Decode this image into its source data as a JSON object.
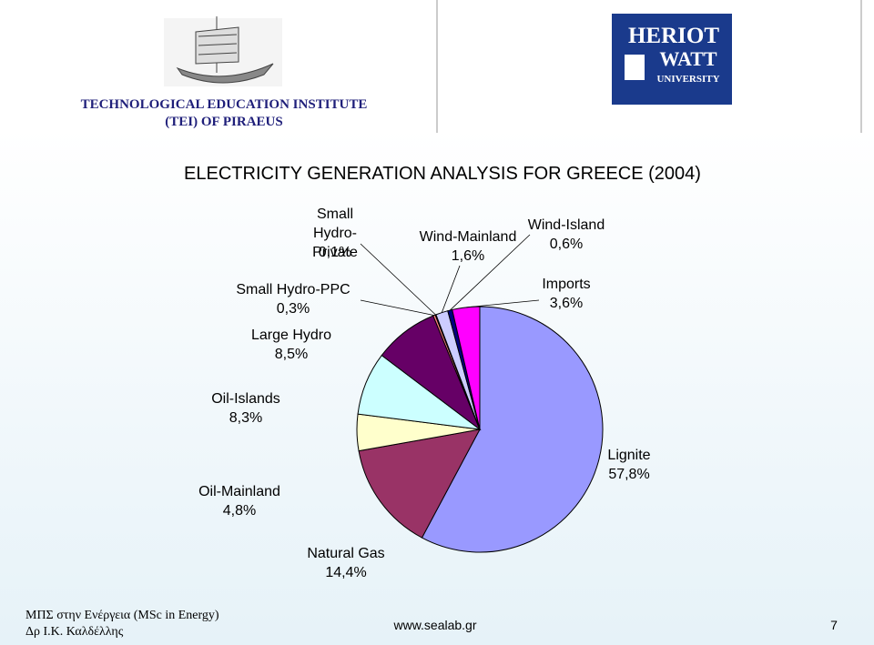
{
  "header": {
    "institute_line1": "TECHNOLOGICAL EDUCATION INSTITUTE",
    "institute_line2": "(TEI) OF PIRAEUS",
    "logo_line1": "HERIOT",
    "logo_line2": "WATT",
    "logo_line3": "UNIVERSITY"
  },
  "chart_data": {
    "type": "pie",
    "title": "ELECTRICITY GENERATION ANALYSIS FOR GREECE (2004)",
    "categories": [
      "Lignite",
      "Natural Gas",
      "Oil-Mainland",
      "Oil-Islands",
      "Large Hydro",
      "Small Hydro-PPC",
      "Small Hydro-Private",
      "Wind-Mainland",
      "Wind-Island",
      "Imports"
    ],
    "values": [
      57.8,
      14.4,
      4.8,
      8.3,
      8.5,
      0.3,
      0.1,
      1.6,
      0.6,
      3.6
    ],
    "value_labels": [
      "57,8%",
      "14,4%",
      "4,8%",
      "8,3%",
      "8,5%",
      "0,3%",
      "0,1%",
      "1,6%",
      "0,6%",
      "3,6%"
    ],
    "colors": [
      "#9999ff",
      "#993366",
      "#ffffcc",
      "#ccffff",
      "#660066",
      "#ff8080",
      "#0066cc",
      "#ccccff",
      "#000080",
      "#ff00ff"
    ]
  },
  "footer": {
    "course": "ΜΠΣ στην Ενέργεια (MSc in Energy)",
    "author": "Δρ Ι.Κ. Καλδέλλης",
    "website": "www.sealab.gr",
    "page": "7"
  }
}
